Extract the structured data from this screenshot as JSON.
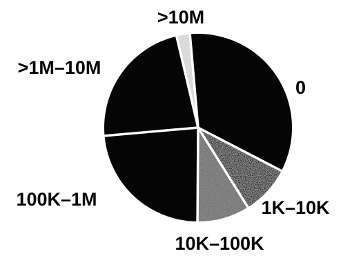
{
  "chart_data": {
    "type": "pie",
    "title": "",
    "start_angle_deg": -5,
    "direction": "clockwise",
    "slices": [
      {
        "label": "0",
        "value": 34.0,
        "color": "#050505",
        "texture": "solid"
      },
      {
        "label": "1K–10K",
        "value": 8.5,
        "color": "#2b2b2b",
        "texture": "noise-dark"
      },
      {
        "label": "10K–100K",
        "value": 9.0,
        "color": "#8c8c8c",
        "texture": "noise-gray"
      },
      {
        "label": "100K–1M",
        "value": 23.5,
        "color": "#050505",
        "texture": "solid"
      },
      {
        "label": ">1M–10M",
        "value": 22.7,
        "color": "#050505",
        "texture": "solid"
      },
      {
        "label": ">10M",
        "value": 2.3,
        "color": "#e4e4e4",
        "texture": "noise-light"
      }
    ],
    "separator_color": "#ffffff"
  }
}
